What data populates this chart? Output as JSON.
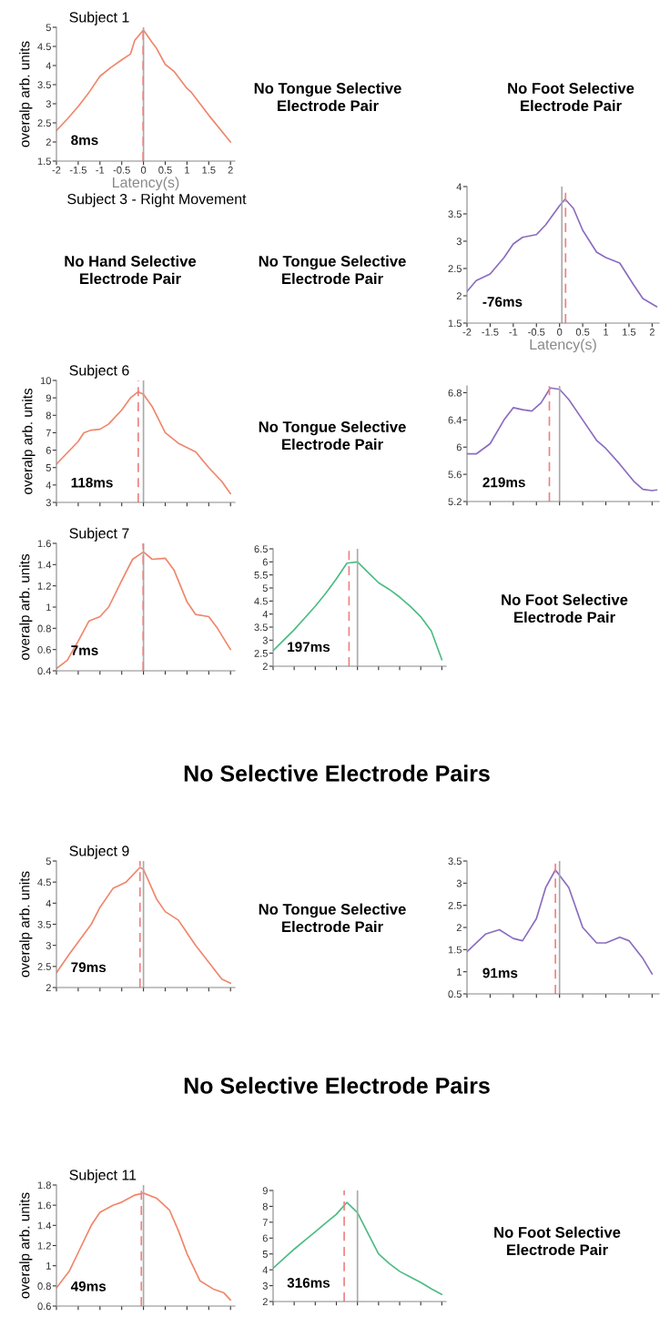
{
  "chart_data": [
    {
      "type": "line",
      "title": "Subject 1",
      "ylabel": "overalp arb. units",
      "xlabel": "Latency(s)",
      "color": "#f0866a",
      "x": [
        -2,
        -1.75,
        -1.5,
        -1.25,
        -1,
        -0.75,
        -0.5,
        -0.3,
        -0.2,
        0,
        0.2,
        0.3,
        0.5,
        0.7,
        1,
        1.1,
        1.5,
        2
      ],
      "values": [
        2.3,
        2.6,
        2.93,
        3.3,
        3.72,
        3.95,
        4.15,
        4.3,
        4.66,
        4.93,
        4.6,
        4.45,
        4.03,
        3.85,
        3.4,
        3.3,
        2.7,
        2.0
      ],
      "xlim": [
        -2,
        2.1
      ],
      "ylim": [
        1.5,
        5
      ],
      "xticks": [
        -2,
        -1.5,
        -1,
        -0.5,
        0,
        0.5,
        1,
        1.5,
        2
      ],
      "yticks": [
        1.5,
        2,
        2.5,
        3,
        3.5,
        4,
        4.5,
        5
      ],
      "ref_lines": [
        {
          "axis": "x",
          "value": 0,
          "color": "#aaaaaa",
          "line_style": "solid"
        },
        {
          "axis": "x",
          "value": -0.008,
          "color": "#f08080",
          "line_style": "dashed"
        }
      ],
      "annotations": [
        "8ms"
      ]
    },
    {
      "type": "line",
      "xlabel": "Latency(s)",
      "color": "#8a6cbf",
      "x": [
        -2,
        -1.8,
        -1.5,
        -1.2,
        -1,
        -0.8,
        -0.5,
        -0.3,
        0,
        0.12,
        0.3,
        0.5,
        0.8,
        1,
        1.3,
        1.6,
        1.8,
        2.1
      ],
      "values": [
        2.08,
        2.28,
        2.4,
        2.7,
        2.95,
        3.07,
        3.12,
        3.3,
        3.65,
        3.77,
        3.6,
        3.2,
        2.8,
        2.7,
        2.6,
        2.2,
        1.95,
        1.8
      ],
      "xlim": [
        -2,
        2.15
      ],
      "ylim": [
        1.5,
        4
      ],
      "xticks": [
        -2,
        -1.5,
        -1,
        -0.5,
        0,
        0.5,
        1,
        1.5,
        2
      ],
      "yticks": [
        1.5,
        2,
        2.5,
        3,
        3.5,
        4
      ],
      "ref_lines": [
        {
          "axis": "x",
          "value": 0.05,
          "color": "#aaaaaa",
          "line_style": "solid"
        },
        {
          "axis": "x",
          "value": 0.13,
          "color": "#f08080",
          "line_style": "dashed"
        }
      ],
      "annotations": [
        "-76ms"
      ]
    },
    {
      "type": "line",
      "title": "Subject 6",
      "ylabel": "overalp arb. units",
      "tick_labels": "y",
      "color": "#f0866a",
      "x": [
        -2,
        -1.5,
        -1.37,
        -1.2,
        -1,
        -0.8,
        -0.5,
        -0.3,
        -0.12,
        0,
        0.2,
        0.5,
        0.8,
        1.2,
        1.5,
        1.8,
        2
      ],
      "values": [
        5.2,
        6.5,
        7.0,
        7.15,
        7.2,
        7.5,
        8.3,
        9.0,
        9.35,
        9.2,
        8.5,
        7.0,
        6.4,
        5.9,
        5.0,
        4.2,
        3.5
      ],
      "xlim": [
        -2,
        2.1
      ],
      "ylim": [
        3,
        10
      ],
      "xticks": [
        {
          "value": -2,
          "label": null
        },
        {
          "value": -1.5,
          "label": null
        },
        {
          "value": -1,
          "label": null
        },
        {
          "value": -0.5,
          "label": null
        },
        {
          "value": 0,
          "label": null
        },
        {
          "value": 0.5,
          "label": null
        },
        {
          "value": 1,
          "label": null
        },
        {
          "value": 1.5,
          "label": null
        },
        {
          "value": 2,
          "label": null
        }
      ],
      "yticks": [
        3,
        4,
        5,
        6,
        7,
        8,
        9,
        10
      ],
      "ref_lines": [
        {
          "axis": "x",
          "value": 0,
          "color": "#aaaaaa",
          "line_style": "solid"
        },
        {
          "axis": "x",
          "value": -0.12,
          "color": "#f08080",
          "line_style": "dashed"
        }
      ],
      "annotations": [
        "118ms"
      ]
    },
    {
      "type": "line",
      "tick_labels": "y",
      "color": "#8a6cbf",
      "x": [
        -2,
        -1.8,
        -1.5,
        -1.2,
        -1,
        -0.8,
        -0.6,
        -0.4,
        -0.2,
        0,
        0.2,
        0.5,
        0.8,
        1,
        1.3,
        1.6,
        1.8,
        2,
        2.1
      ],
      "values": [
        5.9,
        5.9,
        6.05,
        6.4,
        6.58,
        6.55,
        6.53,
        6.65,
        6.87,
        6.85,
        6.7,
        6.4,
        6.1,
        5.98,
        5.75,
        5.5,
        5.38,
        5.36,
        5.37
      ],
      "xlim": [
        -2,
        2.15
      ],
      "ylim": [
        5.2,
        6.9
      ],
      "xticks": [
        {
          "value": -2,
          "label": null
        },
        {
          "value": -1.5,
          "label": null
        },
        {
          "value": -1,
          "label": null
        },
        {
          "value": -0.5,
          "label": null
        },
        {
          "value": 0,
          "label": null
        },
        {
          "value": 0.5,
          "label": null
        },
        {
          "value": 1,
          "label": null
        },
        {
          "value": 1.5,
          "label": null
        },
        {
          "value": 2,
          "label": null
        }
      ],
      "yticks": [
        5.2,
        5.6,
        6,
        6.4,
        6.8
      ],
      "ref_lines": [
        {
          "axis": "x",
          "value": 0,
          "color": "#aaaaaa",
          "line_style": "solid"
        },
        {
          "axis": "x",
          "value": -0.22,
          "color": "#f08080",
          "line_style": "dashed"
        }
      ],
      "annotations": [
        "219ms"
      ]
    },
    {
      "type": "line",
      "title": "Subject 7",
      "ylabel": "overalp arb. units",
      "tick_labels": "y",
      "color": "#f0866a",
      "x": [
        -2,
        -1.75,
        -1.5,
        -1.25,
        -1,
        -0.8,
        -0.5,
        -0.25,
        0,
        0.2,
        0.5,
        0.7,
        1,
        1.2,
        1.5,
        1.7,
        2
      ],
      "values": [
        0.42,
        0.5,
        0.68,
        0.87,
        0.91,
        1.0,
        1.25,
        1.45,
        1.52,
        1.45,
        1.46,
        1.35,
        1.05,
        0.93,
        0.91,
        0.8,
        0.6
      ],
      "xlim": [
        -2,
        2.1
      ],
      "ylim": [
        0.4,
        1.6
      ],
      "xticks": [
        {
          "value": -2,
          "label": null
        },
        {
          "value": -1.5,
          "label": null
        },
        {
          "value": -1,
          "label": null
        },
        {
          "value": -0.5,
          "label": null
        },
        {
          "value": 0,
          "label": null
        },
        {
          "value": 0.5,
          "label": null
        },
        {
          "value": 1,
          "label": null
        },
        {
          "value": 1.5,
          "label": null
        },
        {
          "value": 2,
          "label": null
        }
      ],
      "yticks": [
        0.4,
        0.6,
        0.8,
        1,
        1.2,
        1.4,
        1.6
      ],
      "ref_lines": [
        {
          "axis": "x",
          "value": 0,
          "color": "#aaaaaa",
          "line_style": "solid"
        },
        {
          "axis": "x",
          "value": -0.007,
          "color": "#f08080",
          "line_style": "dashed"
        }
      ],
      "annotations": [
        "7ms"
      ]
    },
    {
      "type": "line",
      "tick_labels": "y",
      "color": "#4cbb84",
      "categories": [
        null,
        null,
        null,
        null,
        null,
        null,
        null,
        null,
        null,
        null,
        null,
        null,
        null,
        null,
        null,
        null,
        null
      ],
      "values": [
        2.6,
        3.0,
        3.4,
        3.85,
        4.3,
        4.8,
        5.35,
        5.95,
        6.0,
        5.6,
        5.2,
        4.95,
        4.65,
        4.3,
        3.9,
        3.35,
        2.25
      ],
      "ylim": [
        2,
        6.5
      ],
      "yticks": [
        2,
        2.5,
        3,
        3.5,
        4,
        4.5,
        5,
        5.5,
        6,
        6.5
      ],
      "annotations": [
        "197ms"
      ]
    },
    {
      "type": "line",
      "title": "Subject 9",
      "ylabel": "overalp arb. units",
      "tick_labels": "y",
      "color": "#f0866a",
      "x": [
        -2,
        -1.7,
        -1.2,
        -1,
        -0.7,
        -0.4,
        -0.08,
        0,
        0.3,
        0.5,
        0.8,
        1.2,
        1.5,
        1.8,
        2
      ],
      "values": [
        2.35,
        2.8,
        3.5,
        3.9,
        4.35,
        4.5,
        4.85,
        4.8,
        4.1,
        3.8,
        3.6,
        3.0,
        2.6,
        2.2,
        2.1
      ],
      "xlim": [
        -2,
        2.1
      ],
      "ylim": [
        2,
        5
      ],
      "xticks": [
        {
          "value": -2,
          "label": null
        },
        {
          "value": -1.5,
          "label": null
        },
        {
          "value": -1,
          "label": null
        },
        {
          "value": -0.5,
          "label": null
        },
        {
          "value": 0,
          "label": null
        },
        {
          "value": 0.5,
          "label": null
        },
        {
          "value": 1,
          "label": null
        },
        {
          "value": 1.5,
          "label": null
        },
        {
          "value": 2,
          "label": null
        }
      ],
      "yticks": [
        2,
        2.5,
        3,
        3.5,
        4,
        4.5,
        5
      ],
      "ref_lines": [
        {
          "axis": "x",
          "value": 0,
          "color": "#aaaaaa",
          "line_style": "solid"
        },
        {
          "axis": "x",
          "value": -0.08,
          "color": "#f08080",
          "line_style": "dashed"
        }
      ],
      "annotations": [
        "79ms"
      ]
    },
    {
      "type": "line",
      "tick_labels": "y",
      "color": "#8a6cbf",
      "x": [
        -2,
        -1.6,
        -1.3,
        -1,
        -0.8,
        -0.5,
        -0.3,
        -0.09,
        0.2,
        0.5,
        0.8,
        1,
        1.3,
        1.5,
        1.8,
        2
      ],
      "values": [
        1.45,
        1.85,
        1.95,
        1.75,
        1.7,
        2.2,
        2.9,
        3.3,
        2.9,
        2.0,
        1.65,
        1.65,
        1.78,
        1.7,
        1.3,
        0.95
      ],
      "xlim": [
        -2,
        2.15
      ],
      "ylim": [
        0.5,
        3.5
      ],
      "xticks": [
        {
          "value": -2,
          "label": null
        },
        {
          "value": -1.5,
          "label": null
        },
        {
          "value": -1,
          "label": null
        },
        {
          "value": -0.5,
          "label": null
        },
        {
          "value": 0,
          "label": null
        },
        {
          "value": 0.5,
          "label": null
        },
        {
          "value": 1,
          "label": null
        },
        {
          "value": 1.5,
          "label": null
        },
        {
          "value": 2,
          "label": null
        }
      ],
      "yticks": [
        0.5,
        1,
        1.5,
        2,
        2.5,
        3,
        3.5
      ],
      "ref_lines": [
        {
          "axis": "x",
          "value": 0,
          "color": "#aaaaaa",
          "line_style": "solid"
        },
        {
          "axis": "x",
          "value": -0.09,
          "color": "#f08080",
          "line_style": "dashed"
        }
      ],
      "annotations": [
        "91ms"
      ]
    },
    {
      "type": "line",
      "title": "Subject 11",
      "ylabel": "overalp arb. units",
      "tick_labels": "y",
      "color": "#f0866a",
      "x": [
        -2,
        -1.7,
        -1.5,
        -1.2,
        -1,
        -0.7,
        -0.5,
        -0.2,
        0,
        0.3,
        0.6,
        0.8,
        1,
        1.3,
        1.6,
        1.85,
        2
      ],
      "values": [
        0.78,
        0.95,
        1.13,
        1.4,
        1.53,
        1.6,
        1.63,
        1.7,
        1.72,
        1.67,
        1.55,
        1.35,
        1.12,
        0.85,
        0.77,
        0.73,
        0.66
      ],
      "xlim": [
        -2,
        2.1
      ],
      "ylim": [
        0.6,
        1.8
      ],
      "xticks": [
        {
          "value": -2,
          "label": null
        },
        {
          "value": -1.5,
          "label": null
        },
        {
          "value": -1,
          "label": null
        },
        {
          "value": -0.5,
          "label": null
        },
        {
          "value": 0,
          "label": null
        },
        {
          "value": 0.5,
          "label": null
        },
        {
          "value": 1,
          "label": null
        },
        {
          "value": 1.5,
          "label": null
        },
        {
          "value": 2,
          "label": null
        }
      ],
      "yticks": [
        0.6,
        0.8,
        1,
        1.2,
        1.4,
        1.6,
        1.8
      ],
      "ref_lines": [
        {
          "axis": "x",
          "value": 0,
          "color": "#aaaaaa",
          "line_style": "solid"
        },
        {
          "axis": "x",
          "value": -0.049,
          "color": "#f08080",
          "line_style": "dashed"
        }
      ],
      "annotations": [
        "49ms"
      ]
    },
    {
      "type": "line",
      "tick_labels": "y",
      "color": "#4cbb84",
      "categories": [
        null,
        null,
        null,
        null,
        null,
        null,
        null,
        null,
        null,
        null,
        null,
        null,
        null,
        null,
        null,
        null,
        null
      ],
      "values": [
        4.1,
        4.7,
        5.3,
        5.85,
        6.4,
        6.95,
        7.5,
        8.25,
        7.6,
        6.3,
        5.0,
        4.4,
        3.9,
        3.55,
        3.2,
        2.8,
        2.45
      ],
      "ylim": [
        2,
        9
      ],
      "yticks": [
        2,
        3,
        4,
        5,
        6,
        7,
        8,
        9
      ],
      "annotations": [
        "316ms"
      ]
    },
    {
      "type": "other",
      "annotations": [
        "No Tongue Selective\nElectrode Pair",
        "No Foot Selective\nElectrode Pair",
        "Subject 3 - Right Movement",
        "No Hand Selective\nElectrode Pair",
        "No Tongue Selective\nElectrode Pair",
        "No Tongue Selective\nElectrode Pair",
        "No Foot Selective\nElectrode Pair",
        "No Selective Electrode Pairs",
        "No Tongue Selective\nElectrode Pair",
        "No Selective Electrode Pairs",
        "No Foot Selective\nElectrode Pair"
      ]
    }
  ]
}
